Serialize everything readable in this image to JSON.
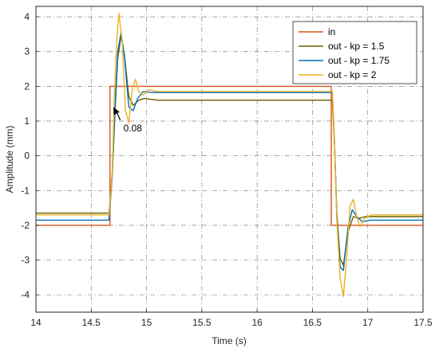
{
  "chart_data": {
    "type": "line",
    "xlabel": "Time (s)",
    "ylabel": "Amplitude (mm)",
    "xlim": [
      14,
      17.5
    ],
    "ylim": [
      -4.5,
      4.3
    ],
    "xticks": [
      "14",
      "14.5",
      "15",
      "15.5",
      "16",
      "16.5",
      "17",
      "17.5"
    ],
    "yticks": [
      "4",
      "3",
      "2",
      "1",
      "0",
      "-1",
      "-2",
      "-3",
      "-4"
    ],
    "grid": true,
    "legend_position": "top-right",
    "annotation": {
      "text": "0.08",
      "arrow_target": [
        14.7,
        1.4
      ],
      "text_position": [
        14.82,
        0.75
      ]
    },
    "series": [
      {
        "name": "in",
        "color": "#D95319",
        "x": [
          14,
          14.67,
          14.67,
          16.67,
          16.67,
          17.5
        ],
        "y": [
          -2,
          -2,
          2,
          2,
          -2,
          -2
        ]
      },
      {
        "name": "out - kp = 1.5",
        "color": "#6B5E00",
        "x": [
          14,
          14.66,
          14.69,
          14.72,
          14.74,
          14.77,
          14.8,
          14.84,
          14.88,
          14.93,
          14.98,
          15.1,
          16.68,
          16.7,
          16.72,
          16.75,
          16.78,
          16.82,
          16.87,
          16.92,
          16.98,
          17.5
        ],
        "y": [
          -1.65,
          -1.65,
          -0.5,
          1.6,
          2.8,
          3.45,
          2.9,
          1.7,
          1.45,
          1.6,
          1.65,
          1.6,
          1.6,
          0.3,
          -1.6,
          -2.95,
          -3.15,
          -2.2,
          -1.75,
          -1.8,
          -1.75,
          -1.75
        ]
      },
      {
        "name": "out - kp = 1.75",
        "color": "#0072BD",
        "x": [
          14,
          14.66,
          14.69,
          14.72,
          14.74,
          14.77,
          14.8,
          14.84,
          14.88,
          14.92,
          14.97,
          15.05,
          16.68,
          16.7,
          16.72,
          16.75,
          16.78,
          16.82,
          16.86,
          16.9,
          16.95,
          17.02,
          17.5
        ],
        "y": [
          -1.85,
          -1.85,
          -0.6,
          1.7,
          3.0,
          3.55,
          2.85,
          1.4,
          1.3,
          1.65,
          1.85,
          1.82,
          1.82,
          0.4,
          -1.7,
          -3.2,
          -3.3,
          -2.1,
          -1.55,
          -1.75,
          -1.9,
          -1.85,
          -1.85
        ]
      },
      {
        "name": "out - kp = 2",
        "color": "#EDB120",
        "x": [
          14,
          14.66,
          14.69,
          14.71,
          14.73,
          14.75,
          14.78,
          14.81,
          14.84,
          14.87,
          14.9,
          14.93,
          14.97,
          15.02,
          15.1,
          16.68,
          16.7,
          16.72,
          16.75,
          16.78,
          16.81,
          16.84,
          16.87,
          16.9,
          16.93,
          16.97,
          17.03,
          17.5
        ],
        "y": [
          -1.7,
          -1.7,
          -0.5,
          1.8,
          3.3,
          4.1,
          3.3,
          1.3,
          0.95,
          1.9,
          2.2,
          1.85,
          1.75,
          1.9,
          1.85,
          1.85,
          0.4,
          -1.8,
          -3.5,
          -4.05,
          -2.9,
          -1.45,
          -1.25,
          -1.75,
          -2.05,
          -1.8,
          -1.7,
          -1.7
        ]
      }
    ]
  }
}
